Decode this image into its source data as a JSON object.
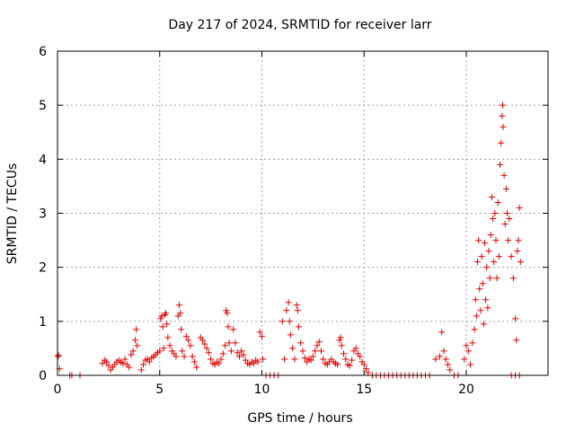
{
  "chart_data": {
    "type": "scatter",
    "title": "Day 217 of 2024, SRMTID for receiver larr",
    "xlabel": "GPS time / hours",
    "ylabel": "SRMTID / TECUs",
    "xlim": [
      0,
      24
    ],
    "ylim": [
      0,
      6
    ],
    "xticks": [
      0,
      5,
      10,
      15,
      20
    ],
    "xtick_labels": [
      "0",
      "5",
      "10",
      "15",
      "20"
    ],
    "yticks": [
      0,
      1,
      2,
      3,
      4,
      5,
      6
    ],
    "ytick_labels": [
      "0",
      "1",
      "2",
      "3",
      "4",
      "5",
      "6"
    ],
    "grid": true,
    "marker": "plus",
    "color": "#e00000",
    "series": [
      {
        "name": "SRMTID",
        "points": [
          [
            0.02,
            0.35
          ],
          [
            0.05,
            0.37
          ],
          [
            0.1,
            0.12
          ],
          [
            0.6,
            0.0
          ],
          [
            0.7,
            0.0
          ],
          [
            1.1,
            0.0
          ],
          [
            2.2,
            0.22
          ],
          [
            2.3,
            0.28
          ],
          [
            2.4,
            0.25
          ],
          [
            2.5,
            0.18
          ],
          [
            2.6,
            0.1
          ],
          [
            2.7,
            0.15
          ],
          [
            2.8,
            0.2
          ],
          [
            2.9,
            0.25
          ],
          [
            3.0,
            0.28
          ],
          [
            3.1,
            0.24
          ],
          [
            3.2,
            0.22
          ],
          [
            3.3,
            0.3
          ],
          [
            3.4,
            0.2
          ],
          [
            3.5,
            0.15
          ],
          [
            3.6,
            0.38
          ],
          [
            3.7,
            0.45
          ],
          [
            3.8,
            0.65
          ],
          [
            3.85,
            0.85
          ],
          [
            3.9,
            0.55
          ],
          [
            4.1,
            0.1
          ],
          [
            4.2,
            0.2
          ],
          [
            4.3,
            0.28
          ],
          [
            4.4,
            0.3
          ],
          [
            4.5,
            0.25
          ],
          [
            4.6,
            0.32
          ],
          [
            4.7,
            0.35
          ],
          [
            4.8,
            0.38
          ],
          [
            4.9,
            0.42
          ],
          [
            5.0,
            0.45
          ],
          [
            5.05,
            1.05
          ],
          [
            5.1,
            1.1
          ],
          [
            5.15,
            0.9
          ],
          [
            5.2,
            0.5
          ],
          [
            5.25,
            1.12
          ],
          [
            5.3,
            1.15
          ],
          [
            5.35,
            0.95
          ],
          [
            5.4,
            0.7
          ],
          [
            5.5,
            0.55
          ],
          [
            5.6,
            0.45
          ],
          [
            5.7,
            0.4
          ],
          [
            5.8,
            0.35
          ],
          [
            5.9,
            1.1
          ],
          [
            5.95,
            1.3
          ],
          [
            6.0,
            1.15
          ],
          [
            6.05,
            0.85
          ],
          [
            6.1,
            0.45
          ],
          [
            6.2,
            0.35
          ],
          [
            6.3,
            0.72
          ],
          [
            6.4,
            0.65
          ],
          [
            6.5,
            0.55
          ],
          [
            6.6,
            0.35
          ],
          [
            6.7,
            0.25
          ],
          [
            6.8,
            0.15
          ],
          [
            7.0,
            0.7
          ],
          [
            7.1,
            0.65
          ],
          [
            7.2,
            0.58
          ],
          [
            7.3,
            0.5
          ],
          [
            7.4,
            0.42
          ],
          [
            7.5,
            0.3
          ],
          [
            7.6,
            0.22
          ],
          [
            7.7,
            0.2
          ],
          [
            7.8,
            0.25
          ],
          [
            7.9,
            0.22
          ],
          [
            8.0,
            0.3
          ],
          [
            8.1,
            0.4
          ],
          [
            8.2,
            0.55
          ],
          [
            8.25,
            1.2
          ],
          [
            8.3,
            1.15
          ],
          [
            8.35,
            0.9
          ],
          [
            8.4,
            0.6
          ],
          [
            8.5,
            0.45
          ],
          [
            8.6,
            0.85
          ],
          [
            8.7,
            0.6
          ],
          [
            8.8,
            0.42
          ],
          [
            8.9,
            0.35
          ],
          [
            9.0,
            0.45
          ],
          [
            9.1,
            0.38
          ],
          [
            9.2,
            0.28
          ],
          [
            9.3,
            0.22
          ],
          [
            9.4,
            0.2
          ],
          [
            9.5,
            0.25
          ],
          [
            9.6,
            0.22
          ],
          [
            9.7,
            0.28
          ],
          [
            9.8,
            0.25
          ],
          [
            9.9,
            0.8
          ],
          [
            10.0,
            0.72
          ],
          [
            10.05,
            0.3
          ],
          [
            10.2,
            0.0
          ],
          [
            10.4,
            0.0
          ],
          [
            10.6,
            0.0
          ],
          [
            10.8,
            0.0
          ],
          [
            11.0,
            1.0
          ],
          [
            11.1,
            0.3
          ],
          [
            11.2,
            1.2
          ],
          [
            11.3,
            1.35
          ],
          [
            11.35,
            1.0
          ],
          [
            11.4,
            0.75
          ],
          [
            11.5,
            0.5
          ],
          [
            11.6,
            0.3
          ],
          [
            11.7,
            1.3
          ],
          [
            11.75,
            1.2
          ],
          [
            11.8,
            0.9
          ],
          [
            11.9,
            0.6
          ],
          [
            12.0,
            0.45
          ],
          [
            12.1,
            0.32
          ],
          [
            12.2,
            0.25
          ],
          [
            12.3,
            0.3
          ],
          [
            12.4,
            0.28
          ],
          [
            12.5,
            0.35
          ],
          [
            12.6,
            0.45
          ],
          [
            12.7,
            0.55
          ],
          [
            12.8,
            0.62
          ],
          [
            12.9,
            0.45
          ],
          [
            13.0,
            0.3
          ],
          [
            13.1,
            0.22
          ],
          [
            13.2,
            0.2
          ],
          [
            13.3,
            0.25
          ],
          [
            13.4,
            0.3
          ],
          [
            13.5,
            0.25
          ],
          [
            13.6,
            0.22
          ],
          [
            13.7,
            0.2
          ],
          [
            13.8,
            0.65
          ],
          [
            13.85,
            0.7
          ],
          [
            13.9,
            0.55
          ],
          [
            14.0,
            0.4
          ],
          [
            14.1,
            0.3
          ],
          [
            14.2,
            0.2
          ],
          [
            14.3,
            0.18
          ],
          [
            14.4,
            0.28
          ],
          [
            14.5,
            0.45
          ],
          [
            14.6,
            0.5
          ],
          [
            14.7,
            0.4
          ],
          [
            14.8,
            0.35
          ],
          [
            14.9,
            0.25
          ],
          [
            15.0,
            0.2
          ],
          [
            15.1,
            0.12
          ],
          [
            15.2,
            0.05
          ],
          [
            15.4,
            0.0
          ],
          [
            15.6,
            0.0
          ],
          [
            15.8,
            0.0
          ],
          [
            16.0,
            0.0
          ],
          [
            16.2,
            0.0
          ],
          [
            16.4,
            0.0
          ],
          [
            16.6,
            0.0
          ],
          [
            16.8,
            0.0
          ],
          [
            17.0,
            0.0
          ],
          [
            17.2,
            0.0
          ],
          [
            17.4,
            0.0
          ],
          [
            17.6,
            0.0
          ],
          [
            17.8,
            0.0
          ],
          [
            18.0,
            0.0
          ],
          [
            18.2,
            0.0
          ],
          [
            18.5,
            0.3
          ],
          [
            18.7,
            0.35
          ],
          [
            18.8,
            0.8
          ],
          [
            18.9,
            0.45
          ],
          [
            19.0,
            0.3
          ],
          [
            19.1,
            0.2
          ],
          [
            19.2,
            0.1
          ],
          [
            19.4,
            0.0
          ],
          [
            19.6,
            0.0
          ],
          [
            19.9,
            0.3
          ],
          [
            20.0,
            0.55
          ],
          [
            20.1,
            0.45
          ],
          [
            20.2,
            0.2
          ],
          [
            20.3,
            0.6
          ],
          [
            20.4,
            0.85
          ],
          [
            20.45,
            1.4
          ],
          [
            20.5,
            1.1
          ],
          [
            20.55,
            2.1
          ],
          [
            20.6,
            2.5
          ],
          [
            20.65,
            1.6
          ],
          [
            20.7,
            1.2
          ],
          [
            20.75,
            2.2
          ],
          [
            20.8,
            1.7
          ],
          [
            20.85,
            0.95
          ],
          [
            20.9,
            2.45
          ],
          [
            20.95,
            1.4
          ],
          [
            21.0,
            2.0
          ],
          [
            21.05,
            1.25
          ],
          [
            21.1,
            2.3
          ],
          [
            21.15,
            1.8
          ],
          [
            21.2,
            2.6
          ],
          [
            21.25,
            3.3
          ],
          [
            21.3,
            2.9
          ],
          [
            21.35,
            2.1
          ],
          [
            21.4,
            3.0
          ],
          [
            21.45,
            2.5
          ],
          [
            21.5,
            1.8
          ],
          [
            21.55,
            3.2
          ],
          [
            21.6,
            2.2
          ],
          [
            21.65,
            3.9
          ],
          [
            21.7,
            4.3
          ],
          [
            21.75,
            4.8
          ],
          [
            21.78,
            5.0
          ],
          [
            21.8,
            4.6
          ],
          [
            21.85,
            3.7
          ],
          [
            21.9,
            2.8
          ],
          [
            21.95,
            3.45
          ],
          [
            22.0,
            3.0
          ],
          [
            22.05,
            2.5
          ],
          [
            22.1,
            2.9
          ],
          [
            22.2,
            2.2
          ],
          [
            22.3,
            1.8
          ],
          [
            22.4,
            1.05
          ],
          [
            22.45,
            0.65
          ],
          [
            22.5,
            2.3
          ],
          [
            22.55,
            2.5
          ],
          [
            22.6,
            3.1
          ],
          [
            22.65,
            2.1
          ],
          [
            22.2,
            0.0
          ],
          [
            22.4,
            0.0
          ],
          [
            22.6,
            0.0
          ]
        ]
      }
    ]
  }
}
